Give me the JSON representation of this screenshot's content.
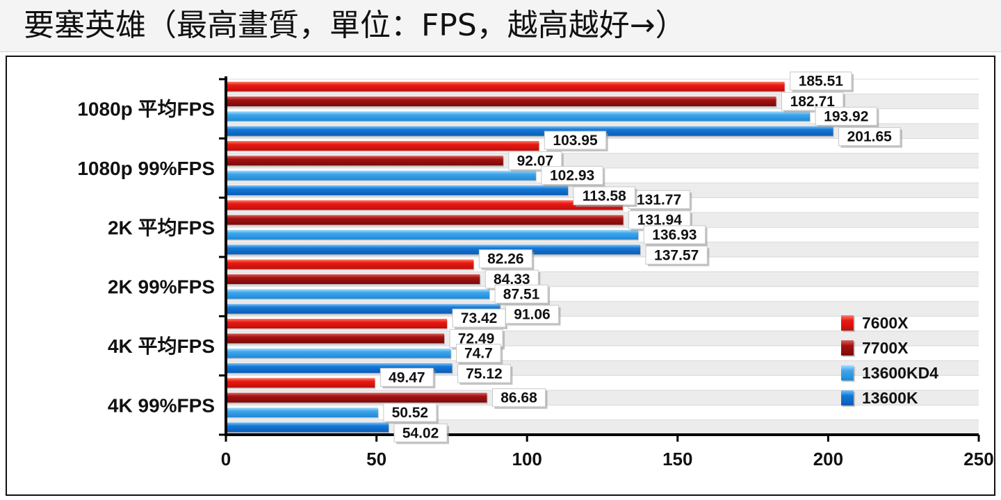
{
  "title": "要塞英雄（最高畫質，單位：FPS，越高越好→）",
  "chart_data": {
    "type": "bar",
    "orientation": "horizontal",
    "title": "要塞英雄（最高畫質，單位：FPS，越高越好→）",
    "xlabel": "",
    "ylabel": "",
    "xlim": [
      0,
      250
    ],
    "x_ticks": [
      0,
      50,
      100,
      150,
      200,
      250
    ],
    "grid": "horizontal alternating bands",
    "legend_position": "right",
    "categories": [
      "1080p 平均FPS",
      "1080p 99%FPS",
      "2K 平均FPS",
      "2K 99%FPS",
      "4K 平均FPS",
      "4K 99%FPS"
    ],
    "series": [
      {
        "name": "7600X",
        "color": "#e41414",
        "values": [
          185.51,
          103.95,
          131.77,
          82.26,
          73.42,
          49.47
        ]
      },
      {
        "name": "7700X",
        "color": "#a51212",
        "values": [
          182.71,
          92.07,
          131.94,
          84.33,
          72.49,
          86.68
        ]
      },
      {
        "name": "13600KD4",
        "color": "#3ea6ec",
        "values": [
          193.92,
          102.93,
          136.93,
          87.51,
          74.7,
          50.52
        ]
      },
      {
        "name": "13600K",
        "color": "#1478d8",
        "values": [
          201.65,
          113.58,
          137.57,
          91.06,
          75.12,
          54.02
        ]
      }
    ]
  }
}
